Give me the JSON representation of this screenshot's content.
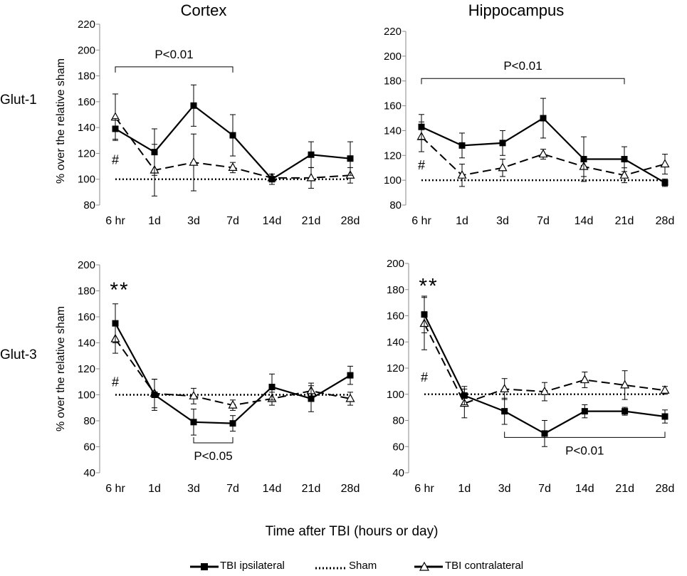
{
  "figure": {
    "col_titles": [
      "Cortex",
      "Hippocampus"
    ],
    "row_labels": [
      "Glut-1",
      "Glut-3"
    ],
    "xaxis_title": "Time after TBI (hours or day)"
  },
  "legend": {
    "ipsi": "TBI ipsilateral",
    "sham": "Sham",
    "contra": "TBI contralateral"
  },
  "chart_data": [
    {
      "type": "line",
      "panel": "Glut-1 Cortex",
      "categories": [
        "6 hr",
        "1d",
        "3d",
        "7d",
        "14d",
        "21d",
        "28d"
      ],
      "ylabel": "% over the relative sham",
      "ylim": [
        80,
        220
      ],
      "yticks": [
        80,
        100,
        120,
        140,
        160,
        180,
        200,
        220
      ],
      "series": [
        {
          "name": "TBI ipsilateral",
          "values": [
            139,
            121,
            157,
            134,
            100,
            119,
            116
          ],
          "errors": [
            8,
            18,
            16,
            16,
            4,
            10,
            13
          ]
        },
        {
          "name": "Sham",
          "values": [
            100,
            100,
            100,
            100,
            100,
            100,
            100
          ],
          "errors": [
            0,
            0,
            0,
            0,
            0,
            0,
            0
          ]
        },
        {
          "name": "TBI contralateral",
          "values": [
            148,
            107,
            113,
            109,
            101,
            101,
            103
          ],
          "errors": [
            18,
            20,
            22,
            4,
            3,
            8,
            6
          ]
        }
      ],
      "annotations": {
        "bracket": {
          "text": "P<0.01",
          "from": 0,
          "to": 3,
          "value": 187,
          "tick_dir": "down"
        },
        "hash": {
          "text": "#",
          "category": 0,
          "value": 115
        },
        "stars": null
      }
    },
    {
      "type": "line",
      "panel": "Glut-1 Hippocampus",
      "categories": [
        "6 hr",
        "1d",
        "3d",
        "7d",
        "14d",
        "21d",
        "28d"
      ],
      "ylabel": "",
      "ylim": [
        80,
        220
      ],
      "yticks": [
        80,
        100,
        120,
        140,
        160,
        180,
        200,
        220
      ],
      "series": [
        {
          "name": "TBI ipsilateral",
          "values": [
            143,
            128,
            130,
            150,
            117,
            117,
            98
          ],
          "errors": [
            10,
            10,
            10,
            16,
            18,
            10,
            3
          ]
        },
        {
          "name": "Sham",
          "values": [
            100,
            100,
            100,
            100,
            100,
            100,
            100
          ],
          "errors": [
            0,
            0,
            0,
            0,
            0,
            0,
            0
          ]
        },
        {
          "name": "TBI contralateral",
          "values": [
            135,
            104,
            110,
            121,
            111,
            104,
            113
          ],
          "errors": [
            12,
            9,
            7,
            4,
            8,
            6,
            8
          ]
        }
      ],
      "annotations": {
        "bracket": {
          "text": "P<0.01",
          "from": 0,
          "to": 5,
          "value": 182,
          "tick_dir": "down"
        },
        "hash": {
          "text": "#",
          "category": 0,
          "value": 112
        },
        "stars": null
      }
    },
    {
      "type": "line",
      "panel": "Glut-3 Cortex",
      "categories": [
        "6 hr",
        "1d",
        "3d",
        "7d",
        "14d",
        "21d",
        "28d"
      ],
      "ylabel": "% over the relative sham",
      "ylim": [
        40,
        200
      ],
      "yticks": [
        40,
        60,
        80,
        100,
        120,
        140,
        160,
        180,
        200
      ],
      "series": [
        {
          "name": "TBI ipsilateral",
          "values": [
            155,
            100,
            79,
            78,
            106,
            97,
            115
          ],
          "errors": [
            15,
            12,
            10,
            6,
            10,
            10,
            7
          ]
        },
        {
          "name": "Sham",
          "values": [
            100,
            100,
            100,
            100,
            100,
            100,
            100
          ],
          "errors": [
            0,
            0,
            0,
            0,
            0,
            0,
            0
          ]
        },
        {
          "name": "TBI contralateral",
          "values": [
            143,
            101,
            99,
            92,
            97,
            103,
            97
          ],
          "errors": [
            11,
            11,
            6,
            4,
            5,
            6,
            5
          ]
        }
      ],
      "annotations": {
        "bracket": {
          "text": "P<0.05",
          "from": 2,
          "to": 3,
          "value": 63,
          "tick_dir": "up"
        },
        "hash": {
          "text": "#",
          "category": 0,
          "value": 110
        },
        "stars": {
          "text": "**",
          "category": 0,
          "value": 183
        }
      }
    },
    {
      "type": "line",
      "panel": "Glut-3 Hippocampus",
      "categories": [
        "6 hr",
        "1d",
        "3d",
        "7d",
        "14d",
        "21d",
        "28d"
      ],
      "ylabel": "",
      "ylim": [
        40,
        200
      ],
      "yticks": [
        40,
        60,
        80,
        100,
        120,
        140,
        160,
        180,
        200
      ],
      "series": [
        {
          "name": "TBI ipsilateral",
          "values": [
            161,
            99,
            87,
            70,
            87,
            87,
            83
          ],
          "errors": [
            14,
            7,
            10,
            10,
            5,
            3,
            5
          ]
        },
        {
          "name": "Sham",
          "values": [
            100,
            100,
            100,
            100,
            100,
            100,
            100
          ],
          "errors": [
            0,
            0,
            0,
            0,
            0,
            0,
            0
          ]
        },
        {
          "name": "TBI contralateral",
          "values": [
            154,
            93,
            104,
            102,
            111,
            107,
            103
          ],
          "errors": [
            20,
            11,
            8,
            7,
            6,
            11,
            3
          ]
        }
      ],
      "annotations": {
        "bracket": {
          "text": "P<0.01",
          "from": 2,
          "to": 6,
          "value": 67,
          "tick_dir": "up"
        },
        "hash": {
          "text": "#",
          "category": 0,
          "value": 113
        },
        "stars": {
          "text": "**",
          "category": 0,
          "value": 185
        }
      }
    }
  ]
}
